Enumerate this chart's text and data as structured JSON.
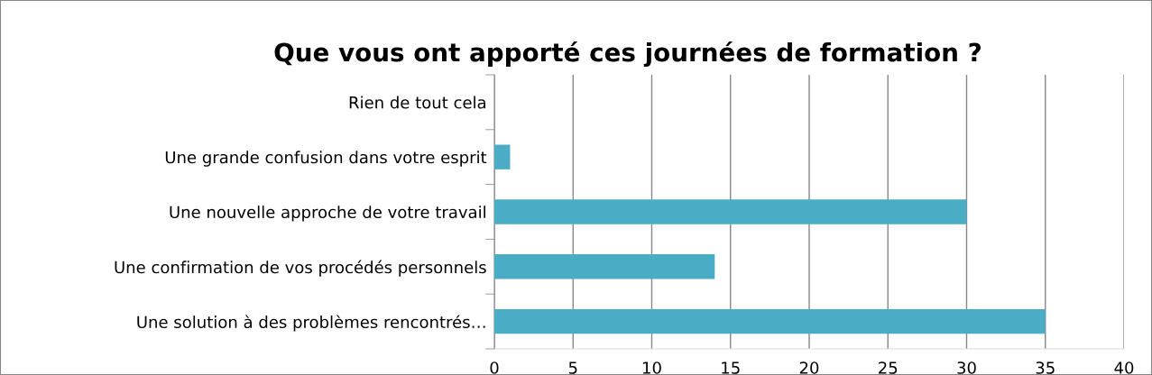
{
  "chart_data": {
    "type": "bar",
    "orientation": "horizontal",
    "title": "Que vous ont apporté ces journées de formation ?",
    "categories": [
      "Rien de tout cela",
      "Une grande confusion dans votre esprit",
      "Une nouvelle approche de votre travail",
      "Une confirmation de vos procédés personnels",
      "Une solution à des problèmes rencontrés…"
    ],
    "values": [
      0,
      1,
      30,
      14,
      35
    ],
    "color": "#4bacc6",
    "xlim": [
      0,
      40
    ],
    "xticks": [
      0,
      5,
      10,
      15,
      20,
      25,
      30,
      35,
      40
    ],
    "grid": "x",
    "legend": false
  }
}
